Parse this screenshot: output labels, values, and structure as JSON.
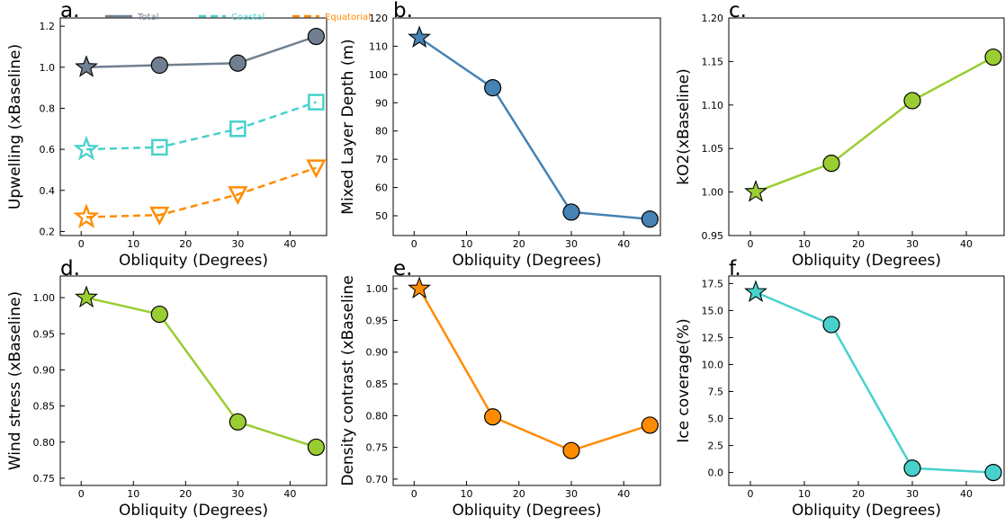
{
  "chart_data": [
    {
      "panel_label": "a.",
      "type": "line",
      "xlabel": "Obliquity (Degrees)",
      "ylabel": "Upwelling (xBaseline)",
      "xlim": [
        -4,
        47
      ],
      "ylim": [
        0.18,
        1.24
      ],
      "xticks": [
        0,
        10,
        20,
        30,
        40
      ],
      "yticks": [
        0.2,
        0.4,
        0.6,
        0.8,
        1.0,
        1.2
      ],
      "yticklabels": [
        "0.2",
        "0.4",
        "0.6",
        "0.8",
        "1.0",
        "1.2"
      ],
      "legend": {
        "placement": "top"
      },
      "series": [
        {
          "name": "Total",
          "color": "#708090",
          "dashed": false,
          "marker": "circle",
          "x": [
            1,
            15,
            30,
            45
          ],
          "y": [
            1.0,
            1.01,
            1.02,
            1.15
          ]
        },
        {
          "name": "Coastal",
          "color": "#48D1CC",
          "dashed": true,
          "marker": "square",
          "x": [
            1,
            15,
            30,
            45
          ],
          "y": [
            0.6,
            0.61,
            0.7,
            0.83
          ]
        },
        {
          "name": "Equatorial",
          "color": "#FF8C00",
          "dashed": true,
          "marker": "triangle-down",
          "x": [
            1,
            15,
            30,
            45
          ],
          "y": [
            0.27,
            0.28,
            0.38,
            0.51
          ]
        }
      ]
    },
    {
      "panel_label": "b.",
      "type": "line",
      "xlabel": "Obliquity (Degrees)",
      "ylabel": "Mixed Layer Depth (m)",
      "xlim": [
        -4,
        47
      ],
      "ylim": [
        43,
        120
      ],
      "xticks": [
        0,
        10,
        20,
        30,
        40
      ],
      "yticks": [
        50,
        60,
        70,
        80,
        90,
        100,
        110,
        120
      ],
      "yticklabels": [
        "50",
        "60",
        "70",
        "80",
        "90",
        "100",
        "110",
        "120"
      ],
      "series": [
        {
          "name": "",
          "color": "#4682B4",
          "dashed": false,
          "marker": "circle",
          "x": [
            1,
            15,
            30,
            45
          ],
          "y": [
            113,
            95.3,
            51.3,
            48.8
          ]
        }
      ]
    },
    {
      "panel_label": "c.",
      "type": "line",
      "xlabel": "Obliquity (Degrees)",
      "ylabel": "kO2(xBaseline)",
      "xlim": [
        -4,
        47
      ],
      "ylim": [
        0.95,
        1.2
      ],
      "xticks": [
        0,
        10,
        20,
        30,
        40
      ],
      "yticks": [
        0.95,
        1.0,
        1.05,
        1.1,
        1.15,
        1.2
      ],
      "yticklabels": [
        "0.95",
        "1.00",
        "1.05",
        "1.10",
        "1.15",
        "1.20"
      ],
      "series": [
        {
          "name": "",
          "color": "#9ACD32",
          "dashed": false,
          "marker": "circle",
          "x": [
            1,
            15,
            30,
            45
          ],
          "y": [
            1.0,
            1.033,
            1.105,
            1.155
          ]
        }
      ]
    },
    {
      "panel_label": "d.",
      "type": "line",
      "xlabel": "Obliquity (Degrees)",
      "ylabel": "Wind stress (xBaseline)",
      "xlim": [
        -4,
        47
      ],
      "ylim": [
        0.74,
        1.03
      ],
      "xticks": [
        0,
        10,
        20,
        30,
        40
      ],
      "yticks": [
        0.75,
        0.8,
        0.85,
        0.9,
        0.95,
        1.0
      ],
      "yticklabels": [
        "0.75",
        "0.80",
        "0.85",
        "0.90",
        "0.95",
        "1.00"
      ],
      "series": [
        {
          "name": "",
          "color": "#9ACD32",
          "dashed": false,
          "marker": "circle",
          "x": [
            1,
            15,
            30,
            45
          ],
          "y": [
            1.0,
            0.977,
            0.828,
            0.793
          ]
        }
      ]
    },
    {
      "panel_label": "e.",
      "type": "line",
      "xlabel": "Obliquity (Degrees)",
      "ylabel": "Density contrast (xBaseline",
      "xlim": [
        -4,
        47
      ],
      "ylim": [
        0.69,
        1.02
      ],
      "xticks": [
        0,
        10,
        20,
        30,
        40
      ],
      "yticks": [
        0.7,
        0.75,
        0.8,
        0.85,
        0.9,
        0.95,
        1.0
      ],
      "yticklabels": [
        "0.70",
        "0.75",
        "0.80",
        "0.85",
        "0.90",
        "0.95",
        "1.00"
      ],
      "series": [
        {
          "name": "",
          "color": "#FF8C00",
          "dashed": false,
          "marker": "circle",
          "x": [
            1,
            15,
            30,
            45
          ],
          "y": [
            1.0,
            0.798,
            0.745,
            0.785
          ]
        }
      ]
    },
    {
      "panel_label": "f.",
      "type": "line",
      "xlabel": "Obliquity (Degrees)",
      "ylabel": "Ice coverage(%)",
      "xlim": [
        -4,
        47
      ],
      "ylim": [
        -1.2,
        18.2
      ],
      "xticks": [
        0,
        10,
        20,
        30,
        40
      ],
      "yticks": [
        0.0,
        2.5,
        5.0,
        7.5,
        10.0,
        12.5,
        15.0,
        17.5
      ],
      "yticklabels": [
        "0.0",
        "2.5",
        "5.0",
        "7.5",
        "10.0",
        "12.5",
        "15.0",
        "17.5"
      ],
      "series": [
        {
          "name": "",
          "color": "#48D1CC",
          "dashed": false,
          "marker": "circle",
          "x": [
            1,
            15,
            30,
            45
          ],
          "y": [
            16.7,
            13.7,
            0.4,
            0.0
          ]
        }
      ]
    }
  ]
}
